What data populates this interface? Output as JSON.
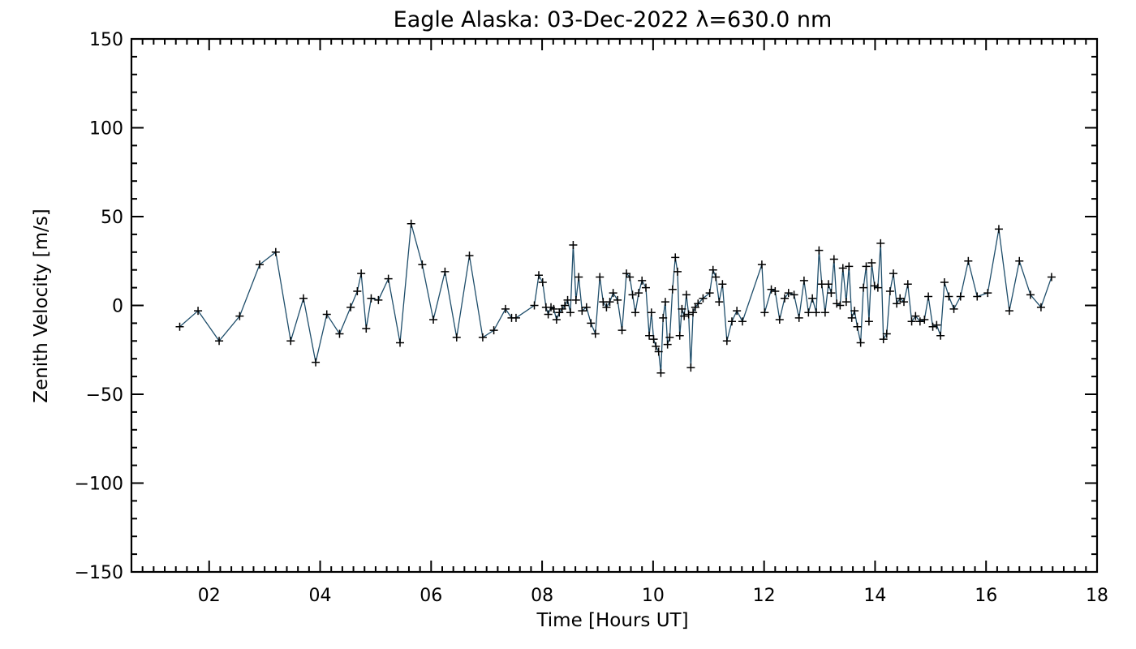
{
  "chart_data": {
    "type": "line",
    "title": "Eagle Alaska: 03-Dec-2022 λ=630.0 nm",
    "xlabel": "Time [Hours UT]",
    "ylabel": "Zenith Velocity [m/s]",
    "xlim": [
      0.6,
      18
    ],
    "ylim": [
      -150,
      150
    ],
    "xticks": [
      2,
      4,
      6,
      8,
      10,
      12,
      14,
      16,
      18
    ],
    "xtick_labels": [
      "02",
      "04",
      "06",
      "08",
      "10",
      "12",
      "14",
      "16",
      "18"
    ],
    "yticks": [
      -150,
      -100,
      -50,
      0,
      50,
      100,
      150
    ],
    "ytick_labels": [
      "−150",
      "−100",
      "−50",
      "0",
      "50",
      "100",
      "150"
    ],
    "grid": false,
    "line_color": "#1f4e6b",
    "marker": "+",
    "series": [
      {
        "x": [
          1.47,
          1.8,
          2.18,
          2.55,
          2.91,
          3.2,
          3.47,
          3.7,
          3.92,
          4.12,
          4.35,
          4.55,
          4.67,
          4.74,
          4.83,
          4.92,
          5.05,
          5.23,
          5.44,
          5.64,
          5.84,
          6.04,
          6.25,
          6.46,
          6.69,
          6.93,
          7.13,
          7.34,
          7.45,
          7.53,
          7.86,
          7.94,
          8.01,
          8.07,
          8.11,
          8.16,
          8.21,
          8.26,
          8.31,
          8.36,
          8.41,
          8.46,
          8.51,
          8.56,
          8.61,
          8.66,
          8.72,
          8.8,
          8.88,
          8.96,
          9.04,
          9.1,
          9.16,
          9.22,
          9.28,
          9.36,
          9.44,
          9.52,
          9.58,
          9.63,
          9.68,
          9.74,
          9.8,
          9.87,
          9.93,
          9.97,
          10.01,
          10.05,
          10.1,
          10.14,
          10.18,
          10.22,
          10.26,
          10.3,
          10.35,
          10.4,
          10.44,
          10.48,
          10.52,
          10.56,
          10.6,
          10.64,
          10.68,
          10.72,
          10.76,
          10.81,
          10.9,
          11.02,
          11.08,
          11.13,
          11.19,
          11.25,
          11.33,
          11.42,
          11.51,
          11.61,
          11.96,
          12.01,
          12.13,
          12.2,
          12.28,
          12.37,
          12.44,
          12.54,
          12.63,
          12.72,
          12.8,
          12.87,
          12.94,
          12.99,
          13.04,
          13.1,
          13.16,
          13.21,
          13.26,
          13.31,
          13.37,
          13.42,
          13.48,
          13.53,
          13.58,
          13.63,
          13.68,
          13.74,
          13.79,
          13.84,
          13.89,
          13.94,
          13.99,
          14.05,
          14.1,
          14.15,
          14.21,
          14.27,
          14.33,
          14.39,
          14.45,
          14.52,
          14.59,
          14.66,
          14.73,
          14.81,
          14.89,
          14.96,
          15.04,
          15.11,
          15.18,
          15.25,
          15.33,
          15.42,
          15.54,
          15.68,
          15.84,
          16.03,
          16.23,
          16.42,
          16.6,
          16.8,
          16.99,
          17.18
        ],
        "y": [
          -12,
          -3,
          -20,
          -6,
          23,
          30,
          -20,
          4,
          -32,
          -5,
          -16,
          -1,
          8,
          18,
          -13,
          4,
          3,
          15,
          -21,
          46,
          23,
          -8,
          19,
          -18,
          28,
          -18,
          -14,
          -2,
          -7,
          -7,
          0,
          17,
          13,
          -1,
          -5,
          -1,
          -2,
          -8,
          -4,
          -2,
          0,
          3,
          -4,
          34,
          3,
          16,
          -3,
          -1,
          -10,
          -16,
          16,
          2,
          -1,
          2,
          7,
          3,
          -14,
          18,
          16,
          6,
          -4,
          7,
          14,
          10,
          -17,
          -4,
          -19,
          -23,
          -26,
          -38,
          -7,
          2,
          -22,
          -18,
          9,
          27,
          19,
          -17,
          -2,
          -6,
          6,
          -5,
          -35,
          -4,
          -1,
          1,
          4,
          7,
          20,
          16,
          2,
          12,
          -20,
          -9,
          -3,
          -9,
          23,
          -4,
          9,
          8,
          -8,
          4,
          7,
          6,
          -7,
          14,
          -4,
          4,
          -4,
          31,
          12,
          -4,
          12,
          7,
          26,
          1,
          0,
          21,
          2,
          22,
          -7,
          -3,
          -12,
          -21,
          10,
          22,
          -9,
          24,
          11,
          10,
          35,
          -19,
          -16,
          8,
          18,
          1,
          4,
          2,
          12,
          -9,
          -6,
          -9,
          -8,
          5,
          -12,
          -11,
          -17,
          13,
          5,
          -2,
          5,
          25,
          5,
          7,
          43,
          -3,
          25,
          6,
          -1,
          16
        ]
      }
    ]
  }
}
